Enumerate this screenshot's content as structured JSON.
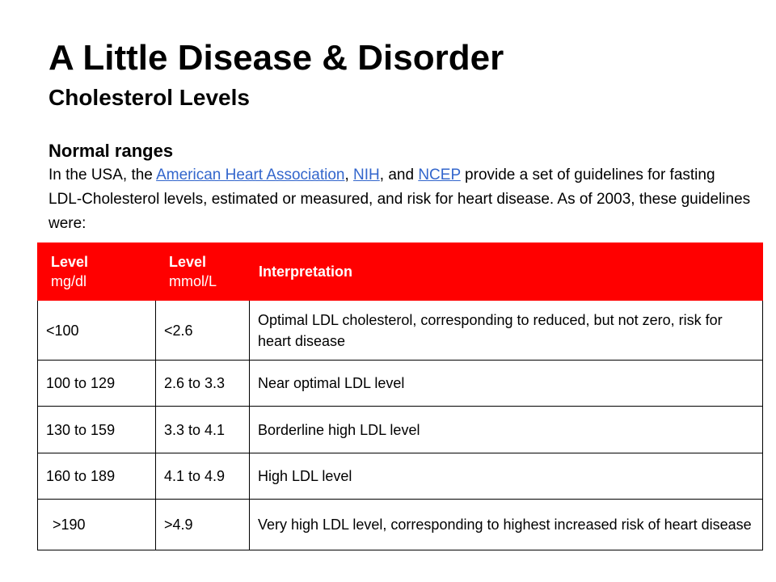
{
  "title": "A Little Disease & Disorder",
  "subtitle": "Cholesterol Levels",
  "section": {
    "heading": "Normal ranges",
    "intro_prefix": "In the USA, the ",
    "link_aha": "American Heart Association",
    "sep1": ", ",
    "link_nih": "NIH",
    "sep2": ", and ",
    "link_ncep": "NCEP",
    "intro_suffix": " provide a set of guidelines for fasting LDL-Cholesterol levels, estimated or measured, and risk for heart disease. As of 2003, these guidelines were:"
  },
  "table": {
    "headers": [
      {
        "label": "Level",
        "unit": "mg/dl"
      },
      {
        "label": "Level",
        "unit": "mmol/L"
      },
      {
        "label": "Interpretation",
        "unit": ""
      }
    ],
    "rows": [
      [
        "<100",
        "<2.6",
        "Optimal LDL cholesterol, corresponding to reduced, but not zero, risk for heart disease"
      ],
      [
        "100 to 129",
        "2.6 to 3.3",
        "Near optimal LDL level"
      ],
      [
        "130 to 159",
        "3.3 to 4.1",
        "Borderline high LDL level"
      ],
      [
        "160 to 189",
        "4.1 to 4.9",
        "High LDL level"
      ],
      [
        ">190",
        ">4.9",
        "Very high LDL level, corresponding to highest increased risk of heart disease"
      ]
    ]
  },
  "colors": {
    "header_bg": "#ff0000",
    "link": "#3366cc"
  }
}
